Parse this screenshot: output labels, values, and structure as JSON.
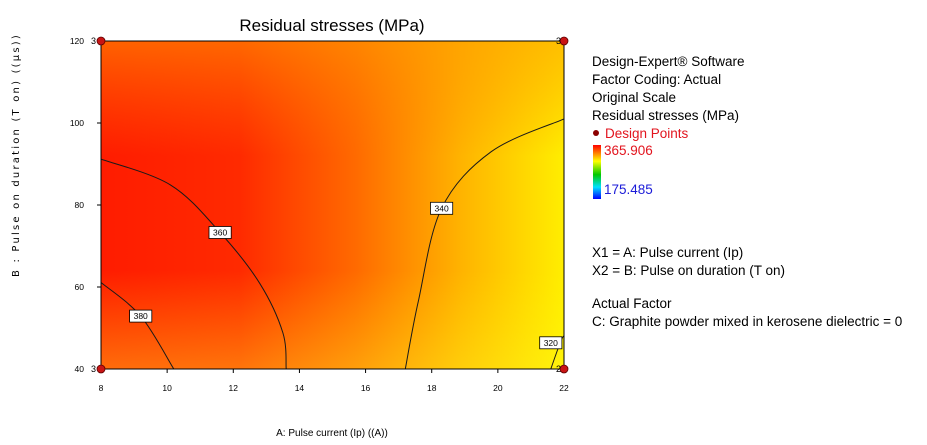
{
  "chart_data": {
    "type": "contour",
    "title": "Residual stresses (MPa)",
    "xlabel": "A: Pulse current (Ip) ((A))",
    "ylabel": "B : Pulse on duration (T on) ((μs))",
    "xlim": [
      8,
      22
    ],
    "ylim": [
      40,
      120
    ],
    "x_ticks": [
      "8",
      "10",
      "12",
      "14",
      "16",
      "18",
      "20",
      "22"
    ],
    "y_ticks": [
      "40",
      "60",
      "80",
      "100",
      "120"
    ],
    "contours": [
      {
        "level": "380",
        "points": [
          [
            8,
            61.1
          ],
          [
            9.2,
            52.9
          ],
          [
            10.2,
            40
          ]
        ],
        "label_at": [
          9.2,
          52.9
        ]
      },
      {
        "level": "360",
        "points": [
          [
            8,
            91.2
          ],
          [
            10.1,
            84.9
          ],
          [
            11.6,
            73.3
          ],
          [
            12.8,
            60.9
          ],
          [
            13.5,
            48.8
          ],
          [
            13.6,
            40
          ]
        ],
        "label_at": [
          11.6,
          73.3
        ]
      },
      {
        "level": "340",
        "points": [
          [
            17.2,
            40
          ],
          [
            17.6,
            56.7
          ],
          [
            18.3,
            79.2
          ],
          [
            19.8,
            93
          ],
          [
            22,
            101
          ]
        ],
        "label_at": [
          18.3,
          79.2
        ]
      },
      {
        "level": "320",
        "points": [
          [
            21.6,
            40
          ],
          [
            21.9,
            46.7
          ],
          [
            22,
            48.1
          ]
        ],
        "label_at": [
          21.6,
          46.4
        ]
      }
    ],
    "design_points": [
      {
        "x": 8,
        "y": 120,
        "label": "3"
      },
      {
        "x": 22,
        "y": 120,
        "label": "3"
      },
      {
        "x": 8,
        "y": 40,
        "label": "3"
      },
      {
        "x": 22,
        "y": 40,
        "label": "2"
      }
    ],
    "color_scale": {
      "max": "365.906",
      "min": "175.485",
      "colors": [
        "#ff0000",
        "#ffff00",
        "#00c800",
        "#0000ff"
      ]
    },
    "fill_colors": {
      "high": "#ff1c00",
      "low": "#ffff00"
    },
    "grid": false
  },
  "legend": {
    "software": "Design-Expert® Software",
    "factor_coding": "Factor Coding: Actual",
    "scale": "Original Scale",
    "response": "Residual stresses (MPa)",
    "design_points": "Design Points",
    "x1": "X1 = A: Pulse current (Ip)",
    "x2": "X2 = B: Pulse on duration (T on)",
    "actual_factor": "Actual Factor",
    "factor_c": "C: Graphite powder mixed in kerosene dielectric = 0"
  }
}
